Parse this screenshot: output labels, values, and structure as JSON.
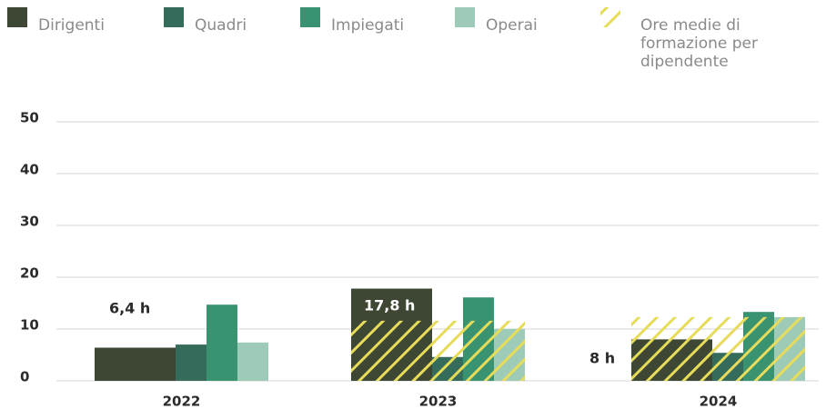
{
  "chart_data": {
    "type": "bar",
    "categories": [
      "2022",
      "2023",
      "2024"
    ],
    "series": [
      {
        "name": "Dirigenti",
        "color": "#3d4733",
        "values": [
          6.4,
          17.8,
          8
        ],
        "value_labels": [
          "6,4 h",
          "17,8 h",
          "8 h"
        ]
      },
      {
        "name": "Quadri",
        "color": "#356b5b",
        "values": [
          7.0,
          4.6,
          5.4
        ]
      },
      {
        "name": "Impiegati",
        "color": "#3a9370",
        "values": [
          14.7,
          16.1,
          13.3
        ]
      },
      {
        "name": "Operai",
        "color": "#9ecbb8",
        "values": [
          7.4,
          10,
          12.3
        ]
      },
      {
        "name": "Ore medie di formazione per dipendente",
        "color": "#e6dc5a",
        "hatch": true,
        "values": [
          null,
          11.6,
          12.3
        ]
      }
    ],
    "ylim": [
      0,
      50
    ],
    "yticks": [
      0,
      10,
      20,
      30,
      40,
      50
    ],
    "grid": true
  }
}
